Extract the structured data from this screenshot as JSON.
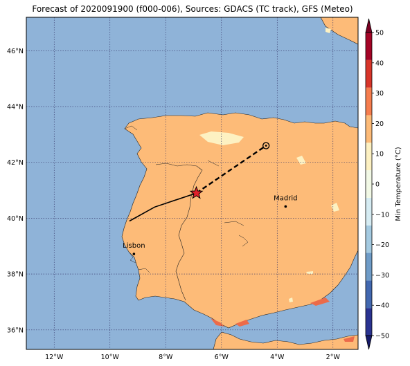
{
  "title": "Forecast of 2020091900 (f000-006), Sources: GDACS (TC track), GFS (Meteo)",
  "colors": {
    "sea": "#8fb3d8",
    "land": "#fdbb78",
    "cold_patch": "#fdf1c2",
    "warm_patch": "#ec6b4a",
    "grid": "#333366",
    "track": "#000000",
    "storm_marker": "#e0202a"
  },
  "map": {
    "lon_range": [
      -13,
      -1.1
    ],
    "lat_range": [
      35.3,
      47.2
    ],
    "lon_ticks": [
      {
        "value": -12,
        "label": "12°W"
      },
      {
        "value": -10,
        "label": "10°W"
      },
      {
        "value": -8,
        "label": "8°W"
      },
      {
        "value": -6,
        "label": "6°W"
      },
      {
        "value": -4,
        "label": "4°W"
      },
      {
        "value": -2,
        "label": "2°W"
      }
    ],
    "lat_ticks": [
      {
        "value": 36,
        "label": "36°N"
      },
      {
        "value": 38,
        "label": "38°N"
      },
      {
        "value": 40,
        "label": "40°N"
      },
      {
        "value": 42,
        "label": "42°N"
      },
      {
        "value": 44,
        "label": "44°N"
      },
      {
        "value": 46,
        "label": "46°N"
      }
    ],
    "cities": [
      {
        "name": "Madrid",
        "lon": -3.7,
        "lat": 40.42
      },
      {
        "name": "Lisbon",
        "lon": -9.14,
        "lat": 38.72
      }
    ],
    "track_past": [
      [
        -9.3,
        39.9
      ],
      [
        -8.4,
        40.4
      ],
      [
        -6.9,
        40.9
      ]
    ],
    "track_forecast": [
      [
        -6.9,
        40.9
      ],
      [
        -4.4,
        42.6
      ]
    ],
    "storm_position": {
      "lon": -6.9,
      "lat": 40.9
    },
    "forecast_end": {
      "lon": -4.4,
      "lat": 42.6
    }
  },
  "colorbar": {
    "label": "Min Temperature (°C)",
    "range": [
      -50,
      50
    ],
    "ticks": [
      -50,
      -40,
      -30,
      -20,
      -10,
      0,
      10,
      20,
      30,
      40,
      50
    ],
    "tick_labels": [
      "−50",
      "−40",
      "−30",
      "−20",
      "−10",
      "0",
      "10",
      "20",
      "30",
      "40",
      "50"
    ],
    "colors": [
      "#2a3391",
      "#4268b0",
      "#6f9cc8",
      "#a4cae1",
      "#d6ecf3",
      "#f2f9e6",
      "#fdf1c2",
      "#fdbb78",
      "#f67d4e",
      "#d8352a",
      "#a40426"
    ],
    "under_color": "#161b6a",
    "over_color": "#7a0022"
  }
}
